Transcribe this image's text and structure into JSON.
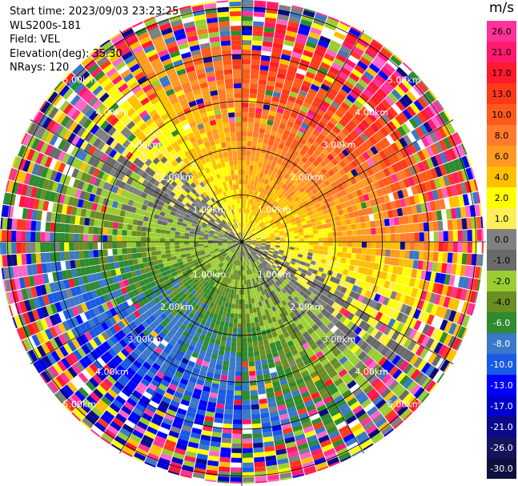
{
  "info": {
    "start_time": "Start time: 2023/09/03 23:23:25",
    "station": "WLS200s-181",
    "field": "Field: VEL",
    "elevation": "Elevation(deg): 35.30",
    "nrays": "NRays: 120"
  },
  "colorbar": {
    "unit": "m/s",
    "ticks": [
      "26.0",
      "21.0",
      "17.0",
      "13.0",
      "10.0",
      "8.0",
      "6.0",
      "4.0",
      "2.0",
      "1.0",
      "0.0",
      "-1.0",
      "-2.0",
      "-4.0",
      "-6.0",
      "-8.0",
      "-10.0",
      "-13.0",
      "-17.0",
      "-21.0",
      "-26.0",
      "-30.0"
    ],
    "colors": [
      "#ff3399",
      "#ff1a6e",
      "#ff1a2d",
      "#ff3a1a",
      "#ff5a1a",
      "#ff7a2a",
      "#ff9a20",
      "#ffc000",
      "#ffff00",
      "#ffee55",
      "#808080",
      "#6a6a6a",
      "#9acd32",
      "#6b8e23",
      "#2e8b2e",
      "#3a78c8",
      "#1a5ae6",
      "#0000ff",
      "#0000cc",
      "#0a0a8a",
      "#15155e",
      "#101040"
    ]
  },
  "range_labels": {
    "r1": "1.00km",
    "r2": "2.00km",
    "r3": "3.00km",
    "r4": "4.00km",
    "r5": "5.00km"
  }
}
